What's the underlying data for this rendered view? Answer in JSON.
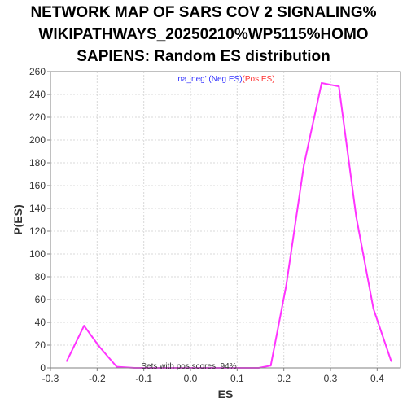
{
  "chart_data": {
    "type": "line",
    "title_lines": [
      "NETWORK MAP OF SARS COV 2 SIGNALING%",
      "WIKIPATHWAYS_20250210%WP5115%HOMO",
      "SAPIENS: Random ES distribution"
    ],
    "xlabel": "ES",
    "ylabel": "P(ES)",
    "xlim": [
      -0.3,
      0.45
    ],
    "ylim": [
      0,
      260
    ],
    "x_ticks": [
      -0.3,
      -0.2,
      -0.1,
      0.0,
      0.1,
      0.2,
      0.3,
      0.4
    ],
    "x_tick_labels": [
      "-0.3",
      "-0.2",
      "-0.1",
      "0.0",
      "0.1",
      "0.2",
      "0.3",
      "0.4"
    ],
    "y_ticks": [
      0,
      20,
      40,
      60,
      80,
      100,
      120,
      140,
      160,
      180,
      200,
      220,
      240,
      260
    ],
    "y_tick_labels": [
      "0",
      "20",
      "40",
      "60",
      "80",
      "100",
      "120",
      "140",
      "160",
      "180",
      "200",
      "220",
      "240",
      "260"
    ],
    "grid": true,
    "legend": {
      "placement": "top-center",
      "parts": [
        {
          "text": "'na_neg' (Neg ES)",
          "color": "#3333ff"
        },
        {
          "text": "(Pos ES)",
          "color": "#ff3333"
        }
      ]
    },
    "annotation": "Sets with pos scores: 94%",
    "series": [
      {
        "color": "#ff33ff",
        "x": [
          -0.265,
          -0.228,
          -0.196,
          -0.158,
          -0.12,
          -0.082,
          -0.044,
          -0.006,
          0.032,
          0.07,
          0.108,
          0.146,
          0.172,
          0.205,
          0.243,
          0.281,
          0.318,
          0.355,
          0.392,
          0.43
        ],
        "y": [
          6,
          37,
          19,
          1,
          0,
          0,
          0,
          0,
          0,
          0,
          0,
          0,
          2,
          72,
          178,
          250,
          247,
          133,
          52,
          6
        ]
      }
    ]
  }
}
